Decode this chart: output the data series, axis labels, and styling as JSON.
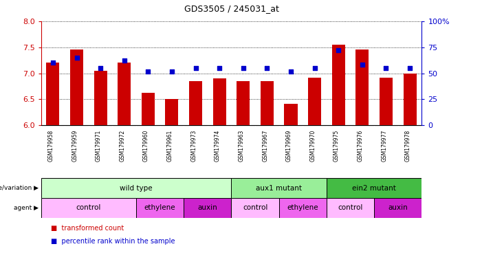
{
  "title": "GDS3505 / 245031_at",
  "samples": [
    "GSM179958",
    "GSM179959",
    "GSM179971",
    "GSM179972",
    "GSM179960",
    "GSM179961",
    "GSM179973",
    "GSM179974",
    "GSM179963",
    "GSM179967",
    "GSM179969",
    "GSM179970",
    "GSM179975",
    "GSM179976",
    "GSM179977",
    "GSM179978"
  ],
  "bar_values": [
    7.2,
    7.45,
    7.05,
    7.2,
    6.62,
    6.5,
    6.85,
    6.9,
    6.85,
    6.85,
    6.42,
    6.92,
    7.55,
    7.45,
    6.92,
    7.0
  ],
  "dot_values": [
    60,
    65,
    55,
    62,
    52,
    52,
    55,
    55,
    55,
    55,
    52,
    55,
    72,
    58,
    55,
    55
  ],
  "y_min": 6.0,
  "y_max": 8.0,
  "y_ticks": [
    6.0,
    6.5,
    7.0,
    7.5,
    8.0
  ],
  "y2_ticks": [
    0,
    25,
    50,
    75,
    100
  ],
  "y2_labels": [
    "0",
    "25",
    "50",
    "75",
    "100%"
  ],
  "bar_color": "#cc0000",
  "dot_color": "#0000cc",
  "tick_area_bg": "#c8c8c8",
  "genotype_groups": [
    {
      "label": "wild type",
      "start": 0,
      "end": 8,
      "color": "#ccffcc"
    },
    {
      "label": "aux1 mutant",
      "start": 8,
      "end": 12,
      "color": "#99ee99"
    },
    {
      "label": "ein2 mutant",
      "start": 12,
      "end": 16,
      "color": "#44bb44"
    }
  ],
  "agent_groups": [
    {
      "label": "control",
      "start": 0,
      "end": 4,
      "color": "#ffbbff"
    },
    {
      "label": "ethylene",
      "start": 4,
      "end": 6,
      "color": "#ee66ee"
    },
    {
      "label": "auxin",
      "start": 6,
      "end": 8,
      "color": "#cc22cc"
    },
    {
      "label": "control",
      "start": 8,
      "end": 10,
      "color": "#ffbbff"
    },
    {
      "label": "ethylene",
      "start": 10,
      "end": 12,
      "color": "#ee66ee"
    },
    {
      "label": "control",
      "start": 12,
      "end": 14,
      "color": "#ffbbff"
    },
    {
      "label": "auxin",
      "start": 14,
      "end": 16,
      "color": "#cc22cc"
    }
  ]
}
